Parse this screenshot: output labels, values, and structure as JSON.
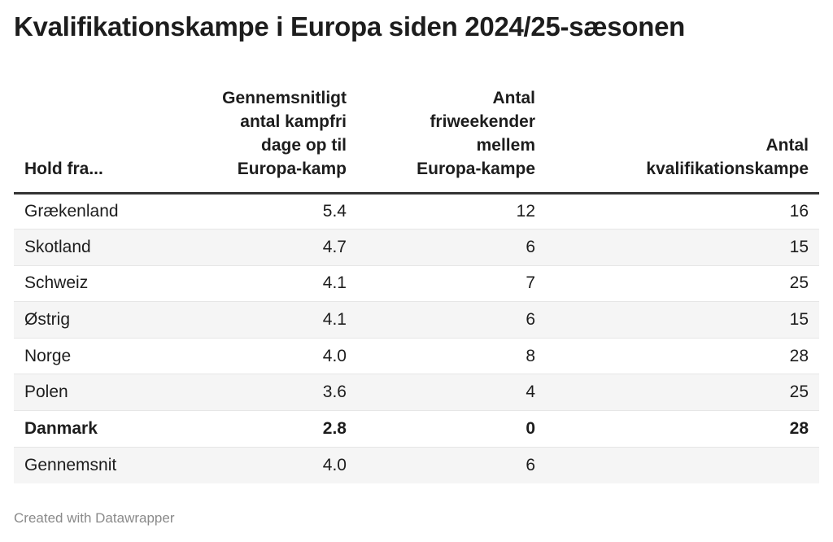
{
  "title": "Kvalifikationskampe i Europa siden 2024/25-sæsonen",
  "footer": "Created with Datawrapper",
  "chart_data": {
    "type": "table",
    "columns": [
      {
        "lines": [
          "Hold fra..."
        ]
      },
      {
        "lines": [
          "Gennemsnitligt",
          "antal kampfri",
          "dage op til",
          "Europa-kamp"
        ]
      },
      {
        "lines": [
          "Antal",
          "friweekender",
          "mellem",
          "Europa-kampe"
        ]
      },
      {
        "lines": [
          "Antal",
          "kvalifikationskampe"
        ]
      }
    ],
    "rows": [
      {
        "label": "Grækenland",
        "values": [
          "5.4",
          "12",
          "16"
        ],
        "shaded": false,
        "bold": false
      },
      {
        "label": "Skotland",
        "values": [
          "4.7",
          "6",
          "15"
        ],
        "shaded": true,
        "bold": false
      },
      {
        "label": "Schweiz",
        "values": [
          "4.1",
          "7",
          "25"
        ],
        "shaded": false,
        "bold": false
      },
      {
        "label": "Østrig",
        "values": [
          "4.1",
          "6",
          "15"
        ],
        "shaded": true,
        "bold": false
      },
      {
        "label": "Norge",
        "values": [
          "4.0",
          "8",
          "28"
        ],
        "shaded": false,
        "bold": false
      },
      {
        "label": "Polen",
        "values": [
          "3.6",
          "4",
          "25"
        ],
        "shaded": true,
        "bold": false
      },
      {
        "label": "Danmark",
        "values": [
          "2.8",
          "0",
          "28"
        ],
        "shaded": false,
        "bold": true
      },
      {
        "label": "Gennemsnit",
        "values": [
          "4.0",
          "6",
          ""
        ],
        "shaded": true,
        "bold": false
      }
    ]
  }
}
